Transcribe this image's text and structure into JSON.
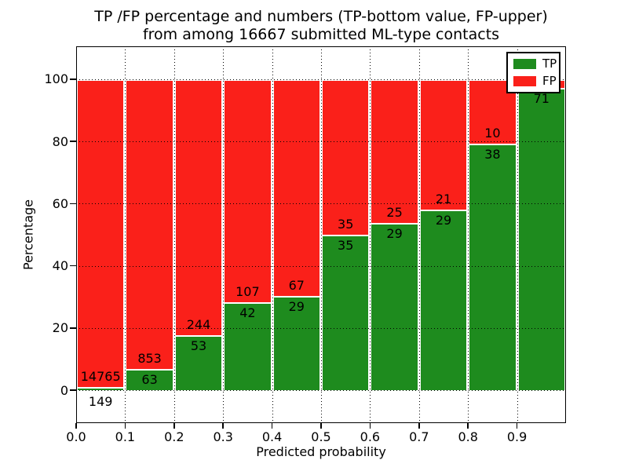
{
  "title_line1": "TP /FP percentage and numbers (TP-bottom value, FP-upper)",
  "title_line2": "from among 16667 submitted ML-type contacts",
  "x_axis": {
    "label": "Predicted probability",
    "ticks": [
      "0.0",
      "0.1",
      "0.2",
      "0.3",
      "0.4",
      "0.5",
      "0.6",
      "0.7",
      "0.8",
      "0.9"
    ]
  },
  "y_axis": {
    "label": "Percentage",
    "ticks": [
      "0",
      "20",
      "40",
      "60",
      "80",
      "100"
    ]
  },
  "legend": [
    {
      "label": "TP",
      "color": "#1e8b1e"
    },
    {
      "label": "FP",
      "color": "#fa201a"
    }
  ],
  "colors": {
    "tp": "#1e8b1e",
    "fp": "#fa201a",
    "bar_edge": "#ffffff",
    "grid": "#000000",
    "frame": "#000000",
    "background": "#ffffff"
  },
  "chart_data": {
    "type": "bar",
    "subtype": "stacked-percentage-histogram",
    "title": "TP /FP percentage and numbers (TP-bottom value, FP-upper) from among 16667 submitted ML-type contacts",
    "xlabel": "Predicted probability",
    "ylabel": "Percentage",
    "xlim": [
      0.0,
      1.0
    ],
    "ylim": [
      -10.6,
      110.6
    ],
    "grid": true,
    "grid_above_bars": true,
    "legend_position": "upper-right",
    "total_submitted_contacts": 16667,
    "bin_width": 0.1,
    "categories": [
      "0.0-0.1",
      "0.1-0.2",
      "0.2-0.3",
      "0.3-0.4",
      "0.4-0.5",
      "0.5-0.6",
      "0.6-0.7",
      "0.7-0.8",
      "0.8-0.9",
      "0.9-1.0"
    ],
    "bins": [
      {
        "range": [
          0.0,
          0.1
        ],
        "tp_label": "149",
        "fp_label": "14765",
        "tp_percent": 1.0,
        "tp_label_below_axis": true
      },
      {
        "range": [
          0.1,
          0.2
        ],
        "tp_label": "63",
        "fp_label": "853",
        "tp_percent": 6.9,
        "tp_label_below_axis": false
      },
      {
        "range": [
          0.2,
          0.3
        ],
        "tp_label": "53",
        "fp_label": "244",
        "tp_percent": 17.8,
        "tp_label_below_axis": false
      },
      {
        "range": [
          0.3,
          0.4
        ],
        "tp_label": "42",
        "fp_label": "107",
        "tp_percent": 28.2,
        "tp_label_below_axis": false
      },
      {
        "range": [
          0.4,
          0.5
        ],
        "tp_label": "29",
        "fp_label": "67",
        "tp_percent": 30.2,
        "tp_label_below_axis": false
      },
      {
        "range": [
          0.5,
          0.6
        ],
        "tp_label": "35",
        "fp_label": "35",
        "tp_percent": 50.0,
        "tp_label_below_axis": false
      },
      {
        "range": [
          0.6,
          0.7
        ],
        "tp_label": "29",
        "fp_label": "25",
        "tp_percent": 53.7,
        "tp_label_below_axis": false
      },
      {
        "range": [
          0.7,
          0.8
        ],
        "tp_label": "29",
        "fp_label": "21",
        "tp_percent": 58.0,
        "tp_label_below_axis": false
      },
      {
        "range": [
          0.8,
          0.9
        ],
        "tp_label": "38",
        "fp_label": "10",
        "tp_percent": 79.2,
        "tp_label_below_axis": false
      },
      {
        "range": [
          0.9,
          1.0
        ],
        "tp_label": "71",
        "fp_label": "",
        "tp_percent": 97.3,
        "tp_label_below_axis": false
      }
    ],
    "series": [
      {
        "name": "TP",
        "counts": [
          149,
          63,
          53,
          42,
          29,
          35,
          29,
          29,
          38,
          71
        ]
      },
      {
        "name": "FP",
        "counts": [
          14765,
          853,
          244,
          107,
          67,
          35,
          25,
          21,
          10,
          null
        ]
      }
    ]
  }
}
